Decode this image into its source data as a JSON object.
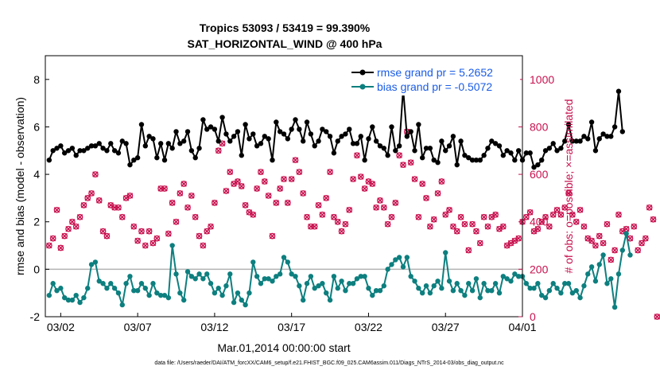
{
  "chart_data": {
    "type": "line",
    "title": "Tropics 53093 / 53419 = 99.390%",
    "subtitle": "SAT_HORIZONTAL_WIND @ 400 hPa",
    "xlabel": "Mar.01,2014 00:00:00 start",
    "ylabel": "rmse and bias (model - observation)",
    "y2label": "# of obs: o=possible; ×=assimilated",
    "footnote": "data file: /Users/raeder/DAI/ATM_forcXX/CAM6_setup/f.e21.FHIST_BGC.f09_025.CAM6assim.011/Diags_NTrS_2014-03/obs_diag_output.nc",
    "xlim": [
      1,
      32
    ],
    "ylim": [
      -2,
      9
    ],
    "y2lim": [
      0,
      1100
    ],
    "x_tick_labels": [
      "03/02",
      "03/07",
      "03/12",
      "03/17",
      "03/22",
      "03/27",
      "04/01"
    ],
    "x_tick_positions": [
      2,
      7,
      12,
      17,
      22,
      27,
      32
    ],
    "y_ticks": [
      -2,
      0,
      2,
      4,
      6,
      8
    ],
    "y2_ticks": [
      0,
      200,
      400,
      600,
      800,
      1000
    ],
    "zero_line": 0,
    "legend_position": "top-right",
    "series": [
      {
        "name": "rmse grand pr = 5.2652",
        "color": "#000000",
        "axis": "left",
        "marker": "circle",
        "x_start": 1.25,
        "x_step": 0.25,
        "values": [
          4.6,
          5.0,
          5.1,
          5.2,
          4.9,
          5.0,
          5.1,
          4.8,
          5.0,
          5.0,
          5.1,
          5.2,
          5.2,
          5.3,
          5.1,
          5.0,
          5.3,
          5.0,
          4.9,
          5.4,
          5.3,
          4.4,
          4.6,
          4.7,
          6.1,
          5.2,
          5.6,
          5.5,
          4.7,
          5.3,
          4.6,
          5.3,
          5.1,
          5.8,
          5.3,
          5.4,
          5.8,
          5.0,
          4.7,
          5.1,
          6.3,
          5.9,
          6.0,
          5.9,
          5.4,
          6.4,
          5.7,
          5.4,
          5.6,
          5.8,
          4.8,
          6.1,
          5.5,
          5.7,
          5.2,
          5.3,
          5.6,
          5.5,
          4.6,
          6.2,
          5.8,
          5.7,
          5.5,
          5.9,
          6.3,
          5.9,
          5.4,
          6.2,
          5.7,
          5.2,
          5.4,
          5.9,
          5.8,
          5.6,
          4.9,
          5.4,
          5.6,
          5.7,
          5.9,
          5.3,
          5.3,
          5.6,
          4.6,
          5.5,
          6.0,
          5.4,
          5.2,
          5.1,
          4.8,
          6.0,
          5.0,
          5.2,
          7.6,
          5.6,
          5.8,
          5.0,
          6.1,
          4.7,
          5.1,
          5.1,
          4.6,
          4.5,
          5.4,
          5.0,
          5.2,
          5.6,
          4.4,
          5.4,
          4.8,
          4.7,
          4.6,
          4.6,
          4.6,
          4.8,
          5.1,
          5.4,
          5.3,
          5.2,
          4.8,
          5.0,
          4.9,
          4.6,
          5.0,
          4.6,
          4.9,
          4.9,
          4.3,
          4.4,
          4.6,
          5.0,
          5.1,
          5.3,
          5.0,
          5.1,
          5.4,
          6.1,
          5.4,
          5.4,
          5.4,
          5.6,
          5.5,
          6.2,
          5.0,
          5.5,
          5.7,
          5.6,
          5.6,
          6.0,
          7.5,
          5.8
        ]
      },
      {
        "name": "bias grand pr = -0.5072",
        "color": "#0d7f7f",
        "axis": "left",
        "marker": "circle",
        "x_start": 1.25,
        "x_step": 0.25,
        "values": [
          -1.1,
          -0.6,
          -0.9,
          -0.8,
          -1.2,
          -1.3,
          -1.3,
          -1.1,
          -1.4,
          -1.2,
          -0.8,
          0.2,
          0.3,
          -0.5,
          -0.6,
          -0.8,
          -0.6,
          -0.8,
          -1.0,
          -1.5,
          -0.6,
          -0.3,
          -0.9,
          -0.9,
          -0.6,
          -0.8,
          -1.1,
          -0.6,
          -1.0,
          -1.1,
          -1.1,
          -1.2,
          1.0,
          -0.2,
          -1.0,
          -1.3,
          -0.1,
          -0.3,
          -0.4,
          -0.2,
          -0.4,
          -0.2,
          -0.6,
          -1.0,
          -0.8,
          -1.1,
          -0.7,
          -0.2,
          -1.4,
          -1.0,
          -1.3,
          -1.5,
          -1.0,
          0.3,
          -0.3,
          -0.6,
          -0.4,
          -0.4,
          -0.5,
          -0.3,
          -0.2,
          0.5,
          0.3,
          -0.2,
          -0.3,
          -0.7,
          -1.3,
          -0.6,
          -0.3,
          -0.8,
          -0.7,
          -0.6,
          -1.0,
          -1.3,
          -0.3,
          -0.8,
          -0.5,
          -0.9,
          -0.6,
          -0.6,
          -0.4,
          -0.3,
          -0.3,
          -0.8,
          -1.1,
          -0.9,
          -0.9,
          -0.7,
          0.0,
          0.2,
          0.4,
          0.5,
          0.1,
          0.5,
          -0.3,
          -0.5,
          -0.8,
          -1.0,
          -0.7,
          -1.0,
          -0.7,
          -0.5,
          -0.8,
          0.7,
          -0.5,
          -0.9,
          -0.6,
          -0.9,
          -1.1,
          -0.6,
          -0.9,
          -0.4,
          -1.2,
          -0.6,
          -0.9,
          -0.9,
          -0.6,
          -1.0,
          -0.3,
          -0.4,
          -0.5,
          -0.2,
          -0.3,
          -0.3,
          -0.6,
          -0.8,
          -0.8,
          -0.6,
          -1.1,
          -1.2,
          -0.9,
          -0.6,
          -0.8,
          -1.0,
          -0.6,
          -0.6,
          -1.0,
          -0.9,
          -1.2,
          -0.7,
          -0.2,
          0.1,
          -0.5,
          0.2,
          0.6,
          -0.6,
          -0.4,
          -1.6,
          -0.2,
          0.8,
          1.5,
          0.6
        ]
      },
      {
        "name": "possible",
        "color": "#c8104e",
        "axis": "right",
        "marker": "o",
        "x_start": 1.25,
        "x_step": 0.25,
        "values": [
          300,
          330,
          450,
          290,
          340,
          370,
          400,
          380,
          420,
          470,
          500,
          520,
          600,
          490,
          360,
          340,
          470,
          460,
          460,
          420,
          500,
          510,
          380,
          320,
          360,
          300,
          360,
          310,
          330,
          540,
          540,
          350,
          480,
          400,
          520,
          560,
          460,
          510,
          420,
          340,
          300,
          360,
          380,
          480,
          700,
          730,
          530,
          610,
          560,
          570,
          550,
          470,
          440,
          430,
          540,
          610,
          570,
          510,
          340,
          480,
          540,
          580,
          480,
          580,
          660,
          610,
          520,
          420,
          380,
          380,
          470,
          430,
          500,
          610,
          420,
          400,
          360,
          390,
          450,
          580,
          680,
          590,
          540,
          570,
          560,
          460,
          490,
          460,
          390,
          420,
          480,
          680,
          640,
          780,
          650,
          580,
          420,
          560,
          500,
          380,
          410,
          520,
          570,
          430,
          450,
          380,
          360,
          420,
          390,
          280,
          390,
          360,
          310,
          420,
          380,
          420,
          430,
          370,
          380,
          300,
          310,
          320,
          330,
          400,
          420,
          440,
          360,
          370,
          400,
          420,
          380,
          430,
          450,
          430,
          460,
          520,
          430,
          400,
          450,
          380,
          330,
          320,
          300,
          340,
          310,
          390,
          240,
          280,
          430,
          360,
          370,
          330,
          380,
          280,
          310,
          330,
          460,
          410,
          0
        ]
      },
      {
        "name": "assimilated",
        "color": "#c8104e",
        "axis": "right",
        "marker": "x",
        "x_start": 1.25,
        "x_step": 0.25,
        "values": [
          300,
          330,
          450,
          290,
          340,
          370,
          400,
          380,
          420,
          470,
          500,
          520,
          600,
          490,
          360,
          340,
          470,
          460,
          460,
          420,
          500,
          510,
          380,
          320,
          360,
          300,
          360,
          310,
          330,
          540,
          540,
          350,
          480,
          400,
          520,
          560,
          460,
          510,
          420,
          340,
          300,
          360,
          380,
          480,
          700,
          730,
          530,
          610,
          560,
          570,
          550,
          470,
          440,
          430,
          540,
          610,
          570,
          510,
          340,
          480,
          540,
          580,
          480,
          580,
          660,
          610,
          520,
          420,
          380,
          380,
          470,
          430,
          500,
          610,
          420,
          400,
          360,
          390,
          450,
          580,
          680,
          590,
          540,
          570,
          560,
          460,
          490,
          460,
          390,
          420,
          480,
          680,
          640,
          780,
          650,
          580,
          420,
          560,
          500,
          380,
          410,
          520,
          570,
          430,
          450,
          380,
          360,
          420,
          390,
          280,
          390,
          360,
          310,
          420,
          380,
          420,
          430,
          370,
          380,
          300,
          310,
          320,
          330,
          400,
          420,
          440,
          360,
          370,
          400,
          420,
          380,
          430,
          450,
          430,
          460,
          520,
          430,
          400,
          450,
          380,
          330,
          320,
          300,
          340,
          310,
          390,
          240,
          280,
          430,
          360,
          370,
          330,
          380,
          280,
          310,
          330,
          460,
          410,
          0
        ]
      }
    ]
  }
}
